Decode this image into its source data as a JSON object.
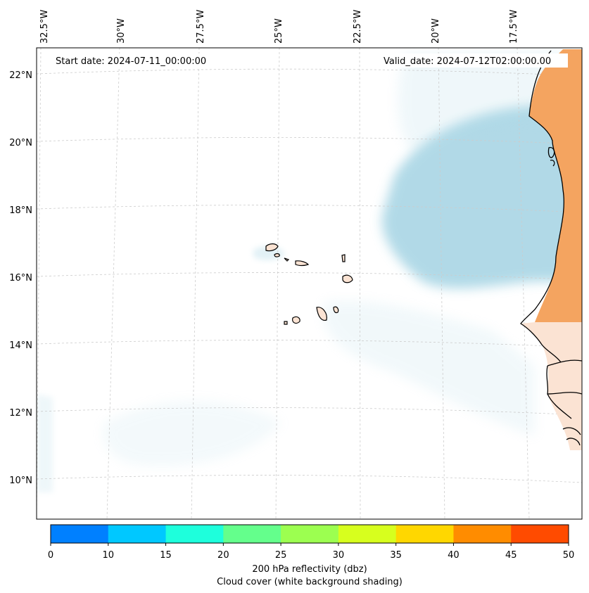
{
  "map": {
    "start_label": "Start date: 2024-07-11_00:00:00",
    "valid_label": "Valid_date: 2024-07-12T02:00:00.00",
    "lon_labels": [
      "32.5°W",
      "30°W",
      "27.5°W",
      "25°W",
      "22.5°W",
      "20°W",
      "17.5°W"
    ],
    "lat_labels": [
      "22°N",
      "20°N",
      "18°N",
      "16°N",
      "14°N",
      "12°N",
      "10°N"
    ],
    "colors": {
      "cloud": "#add8e6",
      "land_fill": "#f4a460",
      "land_light": "#fbe3d3",
      "coast": "#000000",
      "grid": "#cccccc"
    }
  },
  "colorbar": {
    "ticks": [
      "0",
      "10",
      "15",
      "20",
      "25",
      "30",
      "35",
      "40",
      "45",
      "50"
    ],
    "colors": [
      "#0080ff",
      "#00c8ff",
      "#1effdc",
      "#64ff8c",
      "#9cff50",
      "#d7ff1e",
      "#ffd700",
      "#ff8c00",
      "#ff4b00"
    ],
    "label_line1": "200 hPa reflectivity (dbz)",
    "label_line2": "Cloud cover (white background shading)"
  }
}
